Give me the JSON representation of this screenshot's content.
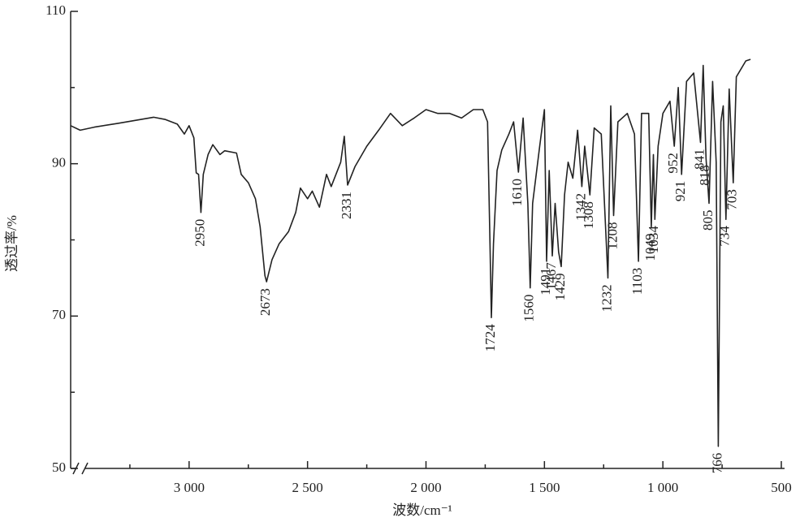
{
  "chart_data": {
    "type": "line",
    "x_label": "波数/cm⁻¹",
    "y_label": "透过率/%",
    "x": [
      3500,
      3460,
      3400,
      3300,
      3150,
      3100,
      3050,
      3020,
      3000,
      2980,
      2970,
      2960,
      2950,
      2940,
      2920,
      2900,
      2870,
      2850,
      2800,
      2780,
      2750,
      2720,
      2700,
      2680,
      2673,
      2650,
      2620,
      2580,
      2550,
      2530,
      2500,
      2480,
      2450,
      2420,
      2400,
      2360,
      2345,
      2331,
      2300,
      2250,
      2200,
      2150,
      2100,
      2050,
      2000,
      1950,
      1900,
      1850,
      1800,
      1760,
      1740,
      1730,
      1724,
      1715,
      1700,
      1680,
      1650,
      1630,
      1610,
      1590,
      1570,
      1560,
      1550,
      1520,
      1500,
      1491,
      1480,
      1467,
      1455,
      1440,
      1429,
      1415,
      1400,
      1380,
      1360,
      1342,
      1330,
      1308,
      1290,
      1260,
      1232,
      1220,
      1208,
      1190,
      1150,
      1120,
      1103,
      1090,
      1060,
      1049,
      1040,
      1034,
      1020,
      1000,
      970,
      952,
      935,
      921,
      900,
      870,
      841,
      830,
      818,
      805,
      790,
      775,
      766,
      755,
      745,
      734,
      720,
      703,
      690,
      650,
      630
    ],
    "values": [
      95.0,
      94.4,
      94.8,
      95.3,
      96.1,
      95.8,
      95.2,
      93.9,
      95.0,
      93.4,
      88.8,
      88.6,
      83.6,
      88.6,
      91.2,
      92.5,
      91.2,
      91.7,
      91.4,
      88.6,
      87.5,
      85.4,
      81.7,
      75.3,
      74.5,
      77.4,
      79.5,
      81.1,
      83.6,
      86.8,
      85.4,
      86.4,
      84.3,
      88.6,
      87.0,
      90.2,
      93.6,
      87.2,
      89.6,
      92.3,
      94.4,
      96.6,
      95.0,
      96.0,
      97.1,
      96.6,
      96.6,
      96.0,
      97.1,
      97.1,
      95.5,
      79.5,
      69.8,
      79.5,
      89.1,
      91.8,
      93.9,
      95.5,
      88.9,
      96.0,
      84.8,
      73.7,
      84.8,
      92.3,
      97.1,
      77.2,
      89.1,
      77.9,
      84.8,
      78.4,
      76.5,
      85.9,
      90.2,
      88.1,
      94.4,
      87.0,
      92.3,
      85.9,
      94.7,
      93.9,
      75.0,
      97.6,
      83.2,
      95.5,
      96.6,
      93.9,
      77.2,
      96.6,
      96.6,
      81.7,
      91.2,
      82.7,
      92.3,
      96.6,
      98.2,
      92.3,
      100.0,
      88.6,
      100.8,
      101.9,
      92.8,
      102.9,
      90.7,
      84.8,
      100.8,
      90.2,
      52.9,
      95.5,
      97.6,
      82.7,
      99.8,
      87.5,
      101.4,
      103.5,
      103.7
    ],
    "color": "#222222",
    "peaks": [
      2950,
      2673,
      2331,
      1724,
      1610,
      1560,
      1491,
      1467,
      1429,
      1342,
      1308,
      1232,
      1208,
      1103,
      1049,
      1034,
      952,
      921,
      841,
      818,
      805,
      766,
      734,
      703
    ],
    "xlim": [
      3500,
      500
    ],
    "xticks": [
      {
        "value": 3000,
        "label": "3 000"
      },
      {
        "value": 2500,
        "label": "2 500"
      },
      {
        "value": 2000,
        "label": "2 000"
      },
      {
        "value": 1500,
        "label": "1 500"
      },
      {
        "value": 1000,
        "label": "1 000"
      },
      500
    ],
    "xticks_minor": [
      3250,
      2750,
      2250,
      1750,
      1250,
      750
    ],
    "ylim": [
      50,
      110
    ],
    "yticks": [
      50,
      70,
      90,
      110
    ],
    "yticks_minor": [
      60,
      80,
      100
    ],
    "grid": false
  }
}
